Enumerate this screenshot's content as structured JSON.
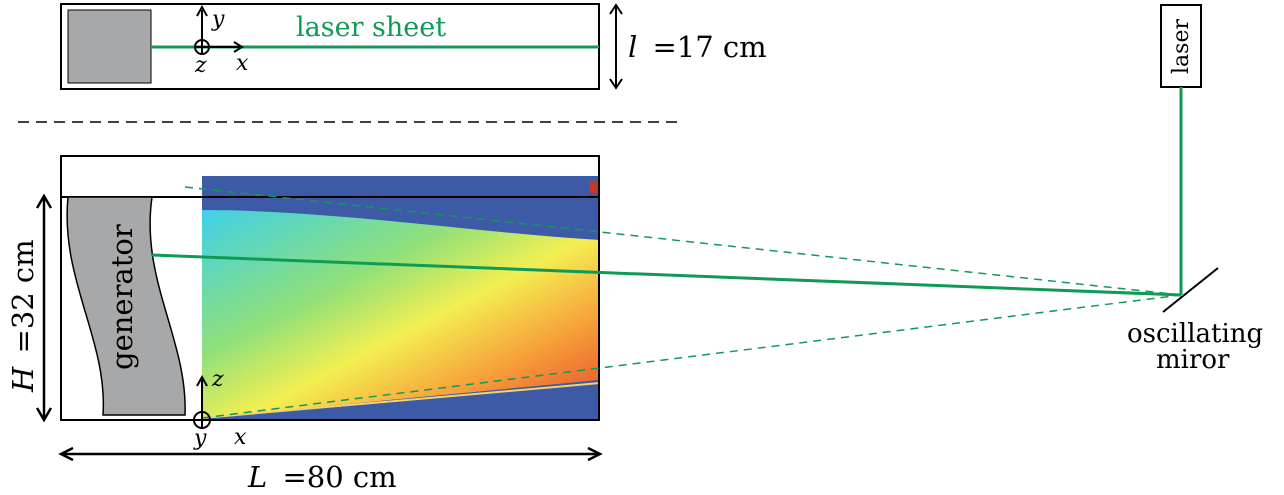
{
  "top_view": {
    "laser_sheet_label": "laser sheet",
    "axis_y": "y",
    "axis_x": "x",
    "axis_z": "z",
    "width_label_symbol": "l",
    "width_label_value": "=17  cm"
  },
  "side_view": {
    "generator_label": "generator",
    "height_label_symbol": "H",
    "height_label_value": "=32  cm",
    "length_label_symbol": "L",
    "length_label_value": "=80  cm",
    "axis_z": "z",
    "axis_x": "x",
    "axis_y": "y"
  },
  "laser_box_label": "laser",
  "mirror_label_line1": "oscillating",
  "mirror_label_line2": "miror",
  "colors": {
    "laser_green": "#119a55",
    "generator_gray": "#a7a8aa",
    "field_background": "#3d5aa6"
  }
}
